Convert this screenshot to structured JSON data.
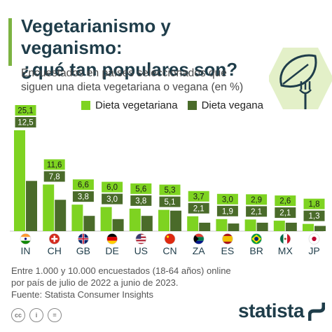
{
  "header": {
    "title_line1": "Vegetarianismo y veganismo:",
    "title_line2": "¿qué tan populares son?",
    "subtitle_line1": "Encuestados en países seleccionados que",
    "subtitle_line2": "siguen una dieta vegetariana o vegana (en %)"
  },
  "chart_data": {
    "type": "bar",
    "categories": [
      "IN",
      "CH",
      "GB",
      "DE",
      "US",
      "CN",
      "ZA",
      "ES",
      "BR",
      "MX",
      "JP"
    ],
    "value_labels": {
      "Dieta vegetariana": [
        "25,1",
        "11,6",
        "6,6",
        "6,0",
        "5,6",
        "5,3",
        "3,7",
        "3,0",
        "2,9",
        "2,6",
        "1,8"
      ],
      "Dieta vegana": [
        "12,5",
        "7,8",
        "3,8",
        "3,0",
        "3,8",
        "5,1",
        "2,1",
        "1,9",
        "2,1",
        "2,1",
        "1,3"
      ]
    },
    "series": [
      {
        "name": "Dieta vegetariana",
        "color": "#7ed321",
        "values": [
          25.1,
          11.6,
          6.6,
          6.0,
          5.6,
          5.3,
          3.7,
          3.0,
          2.9,
          2.6,
          1.8
        ]
      },
      {
        "name": "Dieta vegana",
        "color": "#4a6b2a",
        "values": [
          12.5,
          7.8,
          3.8,
          3.0,
          3.8,
          5.1,
          2.1,
          1.9,
          2.1,
          2.1,
          1.3
        ]
      }
    ],
    "flags": [
      "india-flag",
      "switzerland-flag",
      "uk-flag",
      "germany-flag",
      "usa-flag",
      "china-flag",
      "south-africa-flag",
      "spain-flag",
      "brazil-flag",
      "mexico-flag",
      "japan-flag"
    ],
    "ylim": [
      0,
      25.1
    ],
    "grid": false,
    "legend_position": "top"
  },
  "legend": {
    "vegetarian": "Dieta vegetariana",
    "vegan": "Dieta vegana"
  },
  "footnote": {
    "line1": "Entre 1.000 y 10.000 encuestados (18-64 años) online",
    "line2": "por país de julio de 2022 a junio de 2023.",
    "line3": "Fuente: Statista Consumer Insights"
  },
  "footer": {
    "brand": "statista",
    "icons": [
      "cc-icon",
      "person-icon",
      "equals-icon"
    ],
    "icon_glyphs": [
      "cc",
      "i",
      "="
    ]
  }
}
